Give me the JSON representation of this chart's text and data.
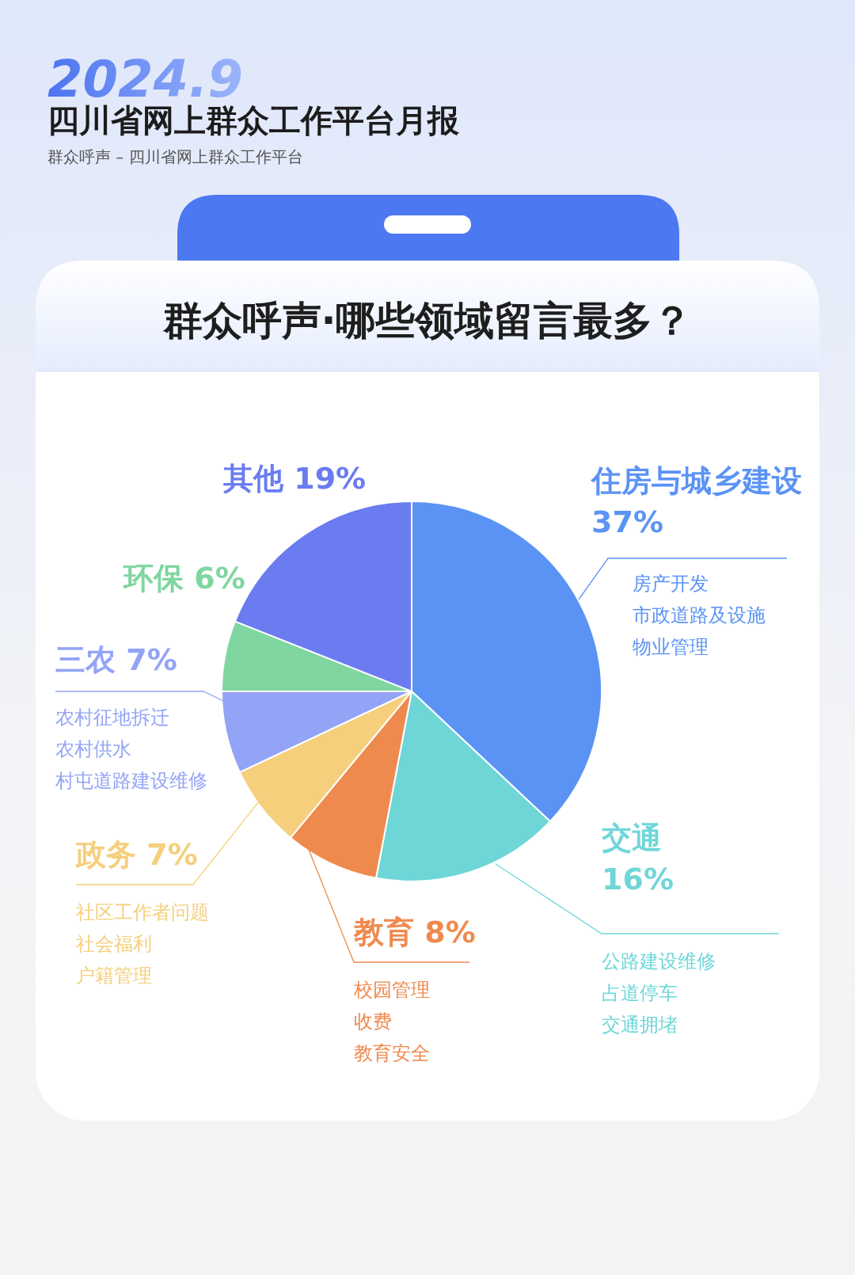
{
  "chart_data": {
    "type": "pie",
    "title": "群众呼声·哪些领域留言最多？",
    "subtitle": "群众呼声 – 四川省网上群众工作平台",
    "categories": [
      "住房与城乡建设",
      "交通",
      "教育",
      "政务",
      "三农",
      "环保",
      "其他"
    ],
    "values": [
      37,
      16,
      8,
      7,
      7,
      6,
      19
    ],
    "value_labels": [
      "37%",
      "16%",
      "8%",
      "7%",
      "7%",
      "6%",
      "19%"
    ],
    "colors": [
      "#5b93f5",
      "#6fd6d8",
      "#ef8a4e",
      "#f5cf7c",
      "#93a4f6",
      "#7fd6a0",
      "#6a7cf0"
    ],
    "annotations": [
      "2024.9",
      "四川省网上群众工作平台月报",
      {
        "text": "房产开发",
        "x": "住房与城乡建设"
      },
      {
        "text": "市政道路及设施",
        "x": "住房与城乡建设"
      },
      {
        "text": "物业管理",
        "x": "住房与城乡建设"
      },
      {
        "text": "公路建设维修",
        "x": "交通"
      },
      {
        "text": "占道停车",
        "x": "交通"
      },
      {
        "text": "交通拥堵",
        "x": "交通"
      },
      {
        "text": "校园管理",
        "x": "教育"
      },
      {
        "text": "收费",
        "x": "教育"
      },
      {
        "text": "教育安全",
        "x": "教育"
      },
      {
        "text": "社区工作者问题",
        "x": "政务"
      },
      {
        "text": "社会福利",
        "x": "政务"
      },
      {
        "text": "户籍管理",
        "x": "政务"
      },
      {
        "text": "农村征地拆迁",
        "x": "三农"
      },
      {
        "text": "农村供水",
        "x": "三农"
      },
      {
        "text": "村屯道路建设维修",
        "x": "三农"
      }
    ]
  }
}
